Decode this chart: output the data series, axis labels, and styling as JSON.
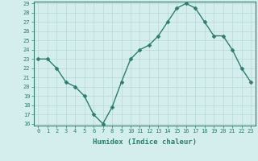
{
  "x": [
    0,
    1,
    2,
    3,
    4,
    5,
    6,
    7,
    8,
    9,
    10,
    11,
    12,
    13,
    14,
    15,
    16,
    17,
    18,
    19,
    20,
    21,
    22,
    23
  ],
  "y": [
    23,
    23,
    22,
    20.5,
    20,
    19,
    17,
    16,
    17.8,
    20.5,
    23,
    24,
    24.5,
    25.5,
    27,
    28.5,
    29,
    28.5,
    27,
    25.5,
    25.5,
    24,
    22,
    20.5
  ],
  "xlabel": "Humidex (Indice chaleur)",
  "ylabel": "",
  "line_color": "#2e7d6e",
  "marker_color": "#2e7d6e",
  "bg_color": "#d4eeee",
  "grid_color": "#b8d8d8",
  "axis_color": "#2e7d6e",
  "ylim": [
    16,
    29
  ],
  "xlim": [
    -0.5,
    23.5
  ],
  "yticks": [
    16,
    17,
    18,
    19,
    20,
    21,
    22,
    23,
    24,
    25,
    26,
    27,
    28,
    29
  ],
  "xticks": [
    0,
    1,
    2,
    3,
    4,
    5,
    6,
    7,
    8,
    9,
    10,
    11,
    12,
    13,
    14,
    15,
    16,
    17,
    18,
    19,
    20,
    21,
    22,
    23
  ],
  "tick_fontsize": 5.0,
  "label_fontsize": 6.5,
  "linewidth": 1.0,
  "markersize": 2.5
}
